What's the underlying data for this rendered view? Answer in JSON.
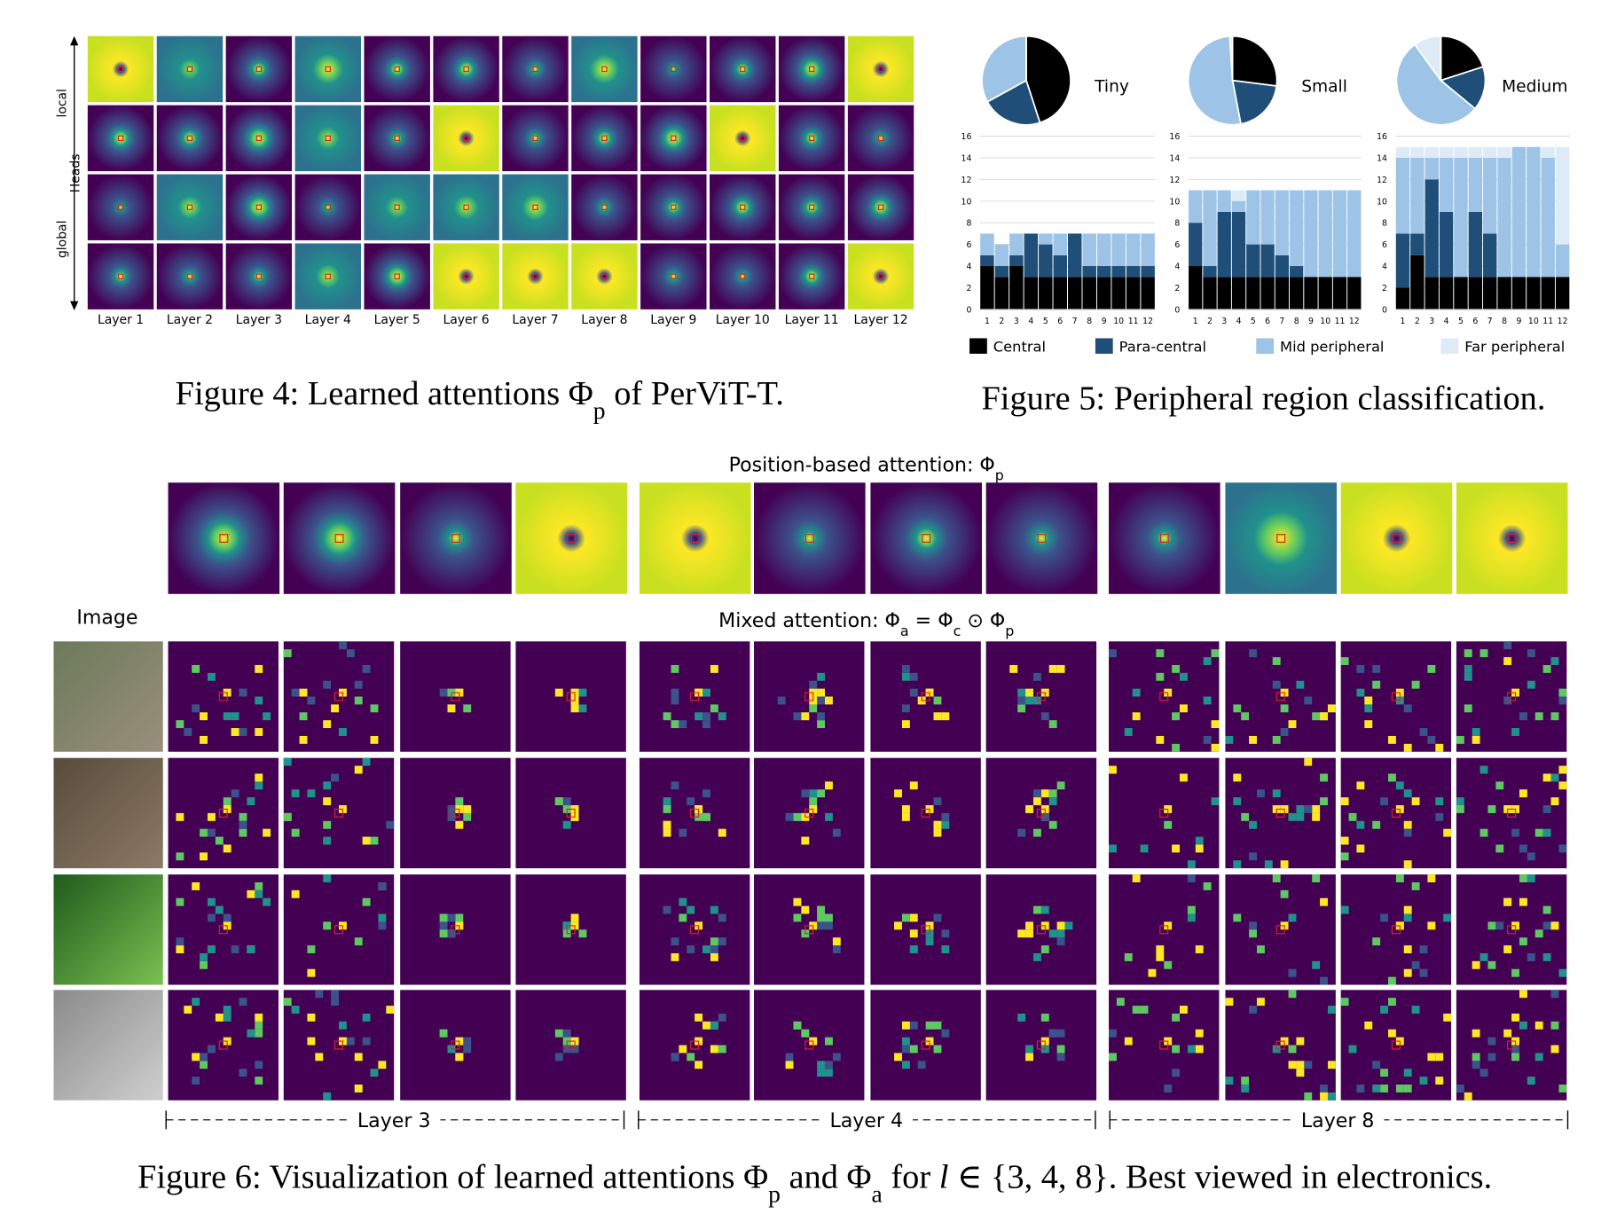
{
  "figure4": {
    "y_labels": [
      "local",
      "Heads",
      "global"
    ],
    "layers": [
      "Layer 1",
      "Layer 2",
      "Layer 3",
      "Layer 4",
      "Layer 5",
      "Layer 6",
      "Layer 7",
      "Layer 8",
      "Layer 9",
      "Layer 10",
      "Layer 11",
      "Layer 12"
    ],
    "caption": [
      {
        "text": "Figure 4: Learned attentions Φ"
      },
      {
        "text": "p",
        "sub": true
      },
      {
        "text": " of PerViT-T."
      }
    ]
  },
  "figure5": {
    "caption": [
      {
        "text": "Figure 5: Peripheral region classification."
      }
    ]
  },
  "chart_data": [
    {
      "type": "pie",
      "title": "Tiny",
      "values": [
        45,
        22,
        33,
        0
      ],
      "colors": [
        "#000000",
        "#1f4e79",
        "#9dc3e6",
        "#deebf7"
      ]
    },
    {
      "type": "pie",
      "title": "Small",
      "values": [
        27,
        20,
        52,
        1
      ],
      "colors": [
        "#000000",
        "#1f4e79",
        "#9dc3e6",
        "#deebf7"
      ]
    },
    {
      "type": "pie",
      "title": "Medium",
      "values": [
        20,
        16,
        54,
        10
      ],
      "colors": [
        "#000000",
        "#1f4e79",
        "#9dc3e6",
        "#deebf7"
      ]
    },
    {
      "type": "bar",
      "stacked": true,
      "grid": true,
      "categories": [
        "1",
        "2",
        "3",
        "4",
        "5",
        "6",
        "7",
        "8",
        "9",
        "10",
        "11",
        "12"
      ],
      "ylim": [
        0,
        16
      ],
      "yticks": [
        0,
        2,
        4,
        6,
        8,
        10,
        12,
        14,
        16
      ],
      "series": [
        {
          "name": "Central",
          "color": "#000000",
          "values": [
            4,
            3,
            4,
            3,
            3,
            3,
            3,
            3,
            3,
            3,
            3,
            3
          ]
        },
        {
          "name": "Para-central",
          "color": "#1f4e79",
          "values": [
            1,
            1,
            1,
            4,
            3,
            2,
            4,
            1,
            1,
            1,
            1,
            1
          ]
        },
        {
          "name": "Mid peripheral",
          "color": "#9dc3e6",
          "values": [
            2,
            2,
            2,
            0,
            1,
            2,
            0,
            3,
            3,
            3,
            3,
            3
          ]
        },
        {
          "name": "Far peripheral",
          "color": "#deebf7",
          "values": [
            0,
            0,
            0,
            0,
            0,
            0,
            0,
            0,
            0,
            0,
            0,
            0
          ]
        }
      ]
    },
    {
      "type": "bar",
      "stacked": true,
      "grid": true,
      "categories": [
        "1",
        "2",
        "3",
        "4",
        "5",
        "6",
        "7",
        "8",
        "9",
        "10",
        "11",
        "12"
      ],
      "ylim": [
        0,
        16
      ],
      "yticks": [
        0,
        2,
        4,
        6,
        8,
        10,
        12,
        14,
        16
      ],
      "series": [
        {
          "name": "Central",
          "color": "#000000",
          "values": [
            4,
            3,
            3,
            3,
            3,
            3,
            3,
            3,
            3,
            3,
            3,
            3
          ]
        },
        {
          "name": "Para-central",
          "color": "#1f4e79",
          "values": [
            4,
            1,
            6,
            6,
            3,
            3,
            2,
            1,
            0,
            0,
            0,
            0
          ]
        },
        {
          "name": "Mid peripheral",
          "color": "#9dc3e6",
          "values": [
            3,
            7,
            2,
            1,
            5,
            5,
            6,
            7,
            8,
            8,
            8,
            8
          ]
        },
        {
          "name": "Far peripheral",
          "color": "#deebf7",
          "values": [
            0,
            0,
            0,
            1,
            0,
            0,
            0,
            0,
            0,
            0,
            0,
            0
          ]
        }
      ]
    },
    {
      "type": "bar",
      "stacked": true,
      "grid": true,
      "categories": [
        "1",
        "2",
        "3",
        "4",
        "5",
        "6",
        "7",
        "8",
        "9",
        "10",
        "11",
        "12"
      ],
      "ylim": [
        0,
        16
      ],
      "yticks": [
        0,
        2,
        4,
        6,
        8,
        10,
        12,
        14,
        16
      ],
      "series": [
        {
          "name": "Central",
          "color": "#000000",
          "values": [
            2,
            5,
            3,
            3,
            3,
            3,
            3,
            3,
            3,
            3,
            3,
            3
          ]
        },
        {
          "name": "Para-central",
          "color": "#1f4e79",
          "values": [
            5,
            2,
            9,
            6,
            0,
            6,
            4,
            0,
            0,
            0,
            0,
            0
          ]
        },
        {
          "name": "Mid peripheral",
          "color": "#9dc3e6",
          "values": [
            7,
            7,
            2,
            5,
            11,
            5,
            7,
            11,
            12,
            12,
            11,
            3
          ]
        },
        {
          "name": "Far peripheral",
          "color": "#deebf7",
          "values": [
            1,
            1,
            1,
            1,
            1,
            1,
            1,
            1,
            0,
            0,
            1,
            9
          ]
        }
      ]
    }
  ],
  "figure6": {
    "position_title": [
      {
        "text": "Position-based attention: Φ"
      },
      {
        "text": "p",
        "sub": true
      }
    ],
    "image_label": "Image",
    "mixed_title": [
      {
        "text": "Mixed attention: Φ"
      },
      {
        "text": "a",
        "sub": true
      },
      {
        "text": " =  Φ"
      },
      {
        "text": "c",
        "sub": true
      },
      {
        "text": " ⊙ Φ"
      },
      {
        "text": "p",
        "sub": true
      }
    ],
    "layers": [
      "Layer 3",
      "Layer 4",
      "Layer 8"
    ],
    "caption": [
      {
        "text": "Figure 6: Visualization of learned attentions Φ"
      },
      {
        "text": "p",
        "sub": true
      },
      {
        "text": " and Φ"
      },
      {
        "text": "a",
        "sub": true
      },
      {
        "text": " for "
      },
      {
        "text": "l",
        "italic": true
      },
      {
        "text": " ∈ {3, 4, 8}. Best viewed in electronics."
      }
    ]
  }
}
